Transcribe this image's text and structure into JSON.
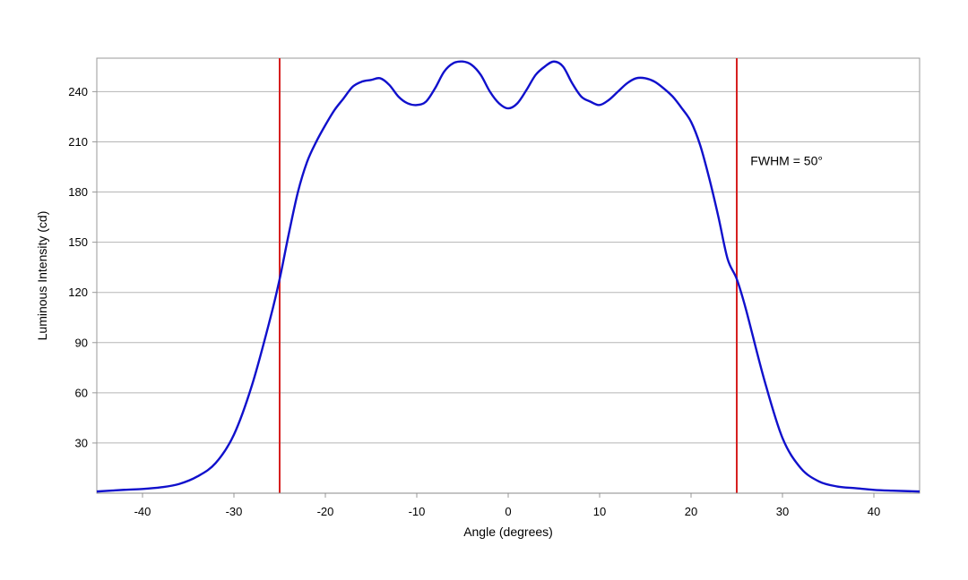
{
  "chart_data": {
    "type": "line",
    "title": "",
    "xlabel": "Angle (degrees)",
    "ylabel": "Luminous Intensity (cd)",
    "xlim": [
      -45,
      45
    ],
    "ylim": [
      0,
      260
    ],
    "xticks": [
      -40,
      -30,
      -20,
      -10,
      0,
      10,
      20,
      30,
      40
    ],
    "yticks": [
      30,
      60,
      90,
      120,
      150,
      180,
      210,
      240
    ],
    "grid": "horizontal",
    "legend": "none",
    "series": [
      {
        "color": "#1010cc",
        "x": [
          -45,
          -42,
          -40,
          -38,
          -36,
          -34,
          -32,
          -30,
          -28,
          -26,
          -25,
          -24,
          -23,
          -22,
          -21,
          -20,
          -19,
          -18,
          -17,
          -16,
          -15,
          -14,
          -13,
          -12,
          -11,
          -10,
          -9,
          -8,
          -7,
          -6,
          -5,
          -4,
          -3,
          -2,
          -1,
          0,
          1,
          2,
          3,
          4,
          5,
          6,
          7,
          8,
          9,
          10,
          11,
          12,
          13,
          14,
          15,
          16,
          17,
          18,
          19,
          20,
          21,
          22,
          23,
          24,
          25,
          26,
          28,
          30,
          32,
          34,
          36,
          38,
          40,
          42,
          45
        ],
        "y": [
          1,
          2,
          2.5,
          3.5,
          5.5,
          10,
          18,
          35,
          65,
          105,
          128,
          155,
          180,
          198,
          210,
          220,
          229,
          236,
          243,
          246,
          247,
          248,
          244,
          237,
          233,
          232,
          234,
          242,
          252,
          257,
          258,
          256,
          250,
          240,
          233,
          230,
          233,
          241,
          250,
          255,
          258,
          255,
          245,
          237,
          234,
          232,
          235,
          240,
          245,
          248,
          248,
          246,
          242,
          237,
          230,
          222,
          208,
          188,
          165,
          140,
          128,
          110,
          68,
          33,
          15,
          7,
          4,
          3,
          2,
          1.5,
          1
        ]
      }
    ],
    "vertical_lines": [
      {
        "x": -25,
        "color": "#d62020"
      },
      {
        "x": 25,
        "color": "#d62020"
      }
    ],
    "annotations": [
      {
        "text": "FWHM = 50°",
        "x": 26.5,
        "y": 196
      }
    ]
  }
}
